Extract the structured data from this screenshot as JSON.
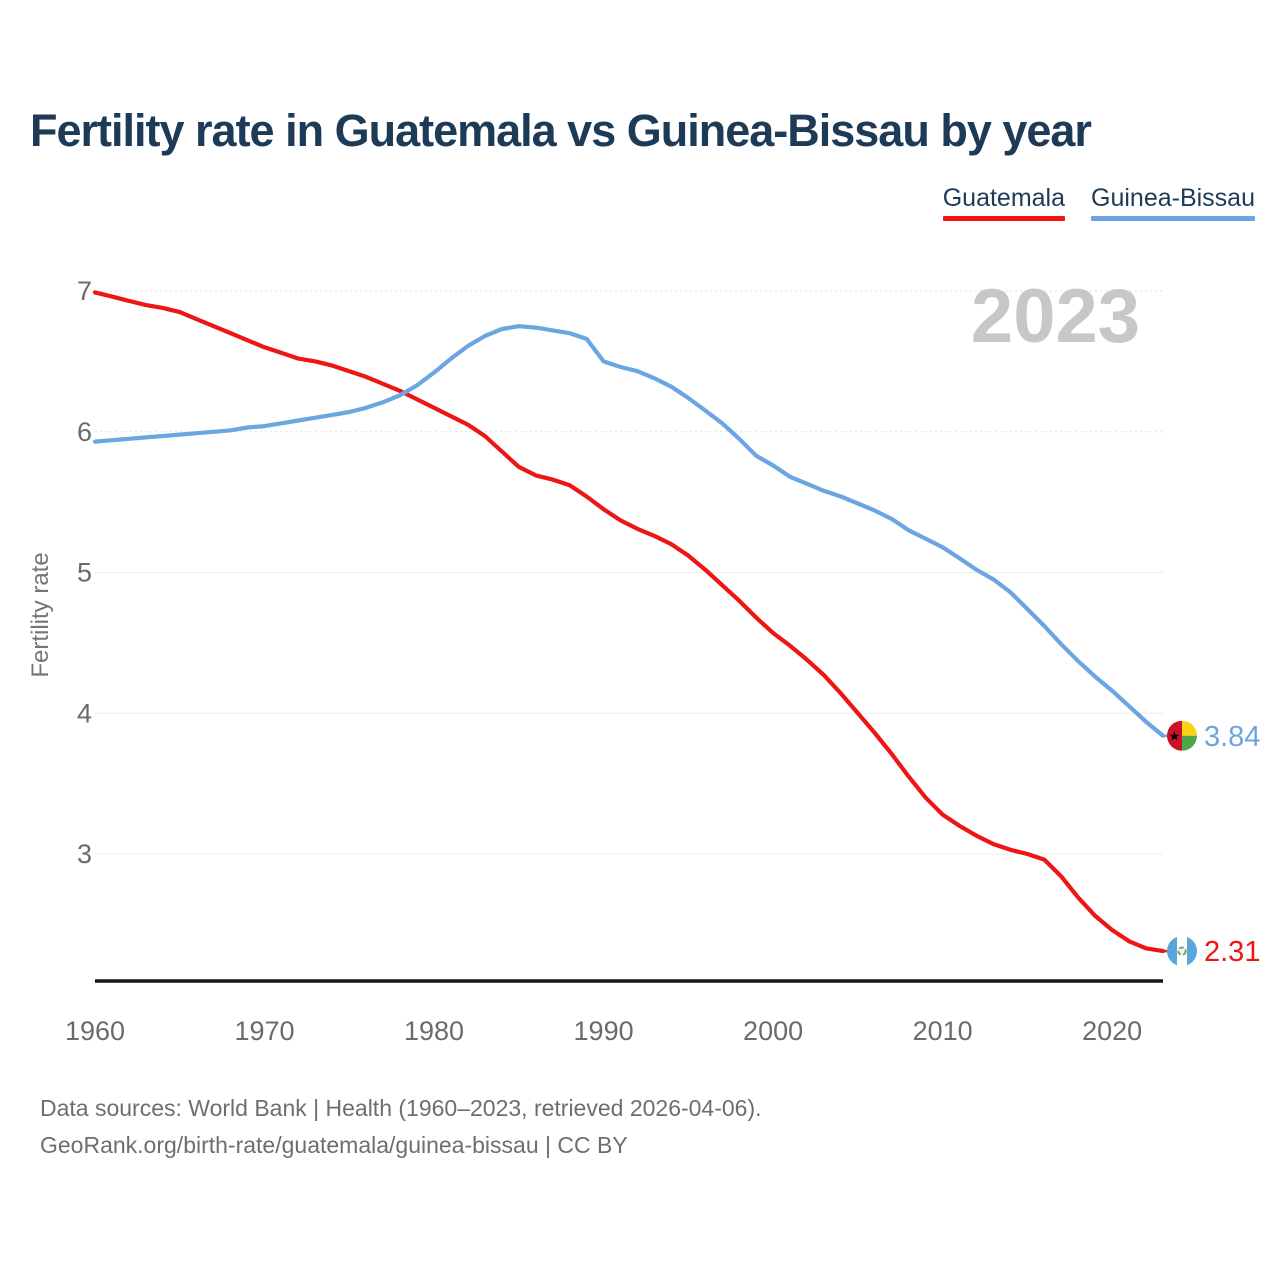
{
  "title": "Fertility rate in Guatemala vs Guinea-Bissau by year",
  "legend": {
    "items": [
      {
        "label": "Guatemala",
        "color": "#f21414"
      },
      {
        "label": "Guinea-Bissau",
        "color": "#6ba6e2"
      }
    ]
  },
  "watermark": "2023",
  "chart_data": {
    "type": "line",
    "title": "Fertility rate in Guatemala vs Guinea-Bissau by year",
    "xlabel": "",
    "ylabel": "Fertility rate",
    "x": [
      1960,
      1961,
      1962,
      1963,
      1964,
      1965,
      1966,
      1967,
      1968,
      1969,
      1970,
      1971,
      1972,
      1973,
      1974,
      1975,
      1976,
      1977,
      1978,
      1979,
      1980,
      1981,
      1982,
      1983,
      1984,
      1985,
      1986,
      1987,
      1988,
      1989,
      1990,
      1991,
      1992,
      1993,
      1994,
      1995,
      1996,
      1997,
      1998,
      1999,
      2000,
      2001,
      2002,
      2003,
      2004,
      2005,
      2006,
      2007,
      2008,
      2009,
      2010,
      2011,
      2012,
      2013,
      2014,
      2015,
      2016,
      2017,
      2018,
      2019,
      2020,
      2021,
      2022,
      2023
    ],
    "series": [
      {
        "name": "Guatemala",
        "color": "#ee1515",
        "end_label": "2.31",
        "final_value": 2.31,
        "flag": "guatemala",
        "values": [
          6.99,
          6.96,
          6.93,
          6.9,
          6.88,
          6.85,
          6.8,
          6.75,
          6.7,
          6.65,
          6.6,
          6.56,
          6.52,
          6.5,
          6.47,
          6.43,
          6.39,
          6.34,
          6.29,
          6.23,
          6.17,
          6.11,
          6.05,
          5.97,
          5.86,
          5.75,
          5.69,
          5.66,
          5.62,
          5.54,
          5.45,
          5.37,
          5.31,
          5.26,
          5.2,
          5.12,
          5.02,
          4.91,
          4.8,
          4.68,
          4.57,
          4.48,
          4.38,
          4.27,
          4.14,
          4.0,
          3.86,
          3.71,
          3.55,
          3.4,
          3.28,
          3.2,
          3.13,
          3.07,
          3.03,
          3.0,
          2.96,
          2.84,
          2.69,
          2.56,
          2.46,
          2.38,
          2.33,
          2.31
        ]
      },
      {
        "name": "Guinea-Bissau",
        "color": "#6ba6e2",
        "end_label": "3.84",
        "final_value": 3.84,
        "flag": "guinea-bissau",
        "values": [
          5.93,
          5.94,
          5.95,
          5.96,
          5.97,
          5.98,
          5.99,
          6.0,
          6.01,
          6.03,
          6.04,
          6.06,
          6.08,
          6.1,
          6.12,
          6.14,
          6.17,
          6.21,
          6.26,
          6.33,
          6.42,
          6.52,
          6.61,
          6.68,
          6.73,
          6.75,
          6.74,
          6.72,
          6.7,
          6.66,
          6.5,
          6.46,
          6.43,
          6.38,
          6.32,
          6.24,
          6.15,
          6.06,
          5.95,
          5.83,
          5.76,
          5.68,
          5.63,
          5.58,
          5.54,
          5.49,
          5.44,
          5.38,
          5.3,
          5.24,
          5.18,
          5.1,
          5.02,
          4.95,
          4.86,
          4.74,
          4.62,
          4.49,
          4.37,
          4.26,
          4.16,
          4.05,
          3.94,
          3.84
        ]
      }
    ],
    "yticks": [
      3,
      4,
      5,
      6,
      7
    ],
    "xticks": [
      1960,
      1970,
      1980,
      1990,
      2000,
      2010,
      2020
    ],
    "ylim": [
      2.1,
      7.05
    ],
    "grid": "horizontal",
    "legend_position": "top-right",
    "watermark": "2023"
  },
  "footer": {
    "line1": "Data sources: World Bank | Health (1960–2023, retrieved 2026-04-06).",
    "line2": "GeoRank.org/birth-rate/guatemala/guinea-bissau | CC BY"
  },
  "colors": {
    "title_text": "#1d3a56",
    "axis_text": "#6b6b6b",
    "watermark": "#c7c7c9",
    "gridline": "#ececec",
    "axis_line": "#161616"
  }
}
